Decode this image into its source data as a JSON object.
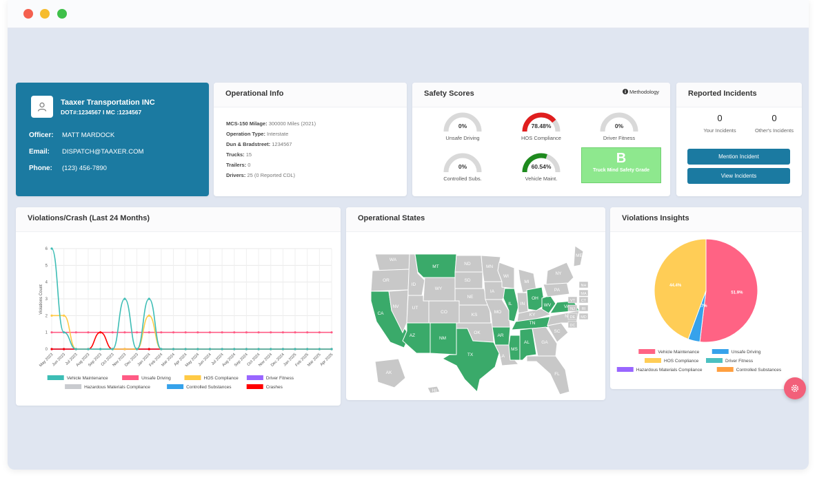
{
  "company": {
    "name": "Taaxer Transportation INC",
    "dot_mc": "DOT#:1234567 I MC :1234567",
    "officer_label": "Officer:",
    "officer": "MATT MARDOCK",
    "email_label": "Email:",
    "email": "DISPATCH@TAAXER.COM",
    "phone_label": "Phone:",
    "phone": "(123) 456-7890"
  },
  "operational_info": {
    "title": "Operational Info",
    "rows": [
      {
        "label": "MCS-150 Milage:",
        "value": "300000 Miles (2021)"
      },
      {
        "label": "Operation Type:",
        "value": "Interstate"
      },
      {
        "label": "Dun & Bradstreet:",
        "value": "1234567"
      },
      {
        "label": "Trucks:",
        "value": "15"
      },
      {
        "label": "Trailers:",
        "value": "0"
      },
      {
        "label": "Drivers:",
        "value": "25 (0 Reported CDL)"
      }
    ]
  },
  "safety_scores": {
    "title": "Safety Scores",
    "methodology": "Methodology",
    "gauges": [
      {
        "label": "Unsafe Driving",
        "value": "0%",
        "fraction": 0,
        "color": "#d9d9d9"
      },
      {
        "label": "HOS Compliance",
        "value": "78.48%",
        "fraction": 0.7848,
        "color": "#e01e1e"
      },
      {
        "label": "Driver Fitness",
        "value": "0%",
        "fraction": 0,
        "color": "#d9d9d9"
      },
      {
        "label": "Controlled Subs.",
        "value": "0%",
        "fraction": 0,
        "color": "#d9d9d9"
      },
      {
        "label": "Vehicle Maint.",
        "value": "60.54%",
        "fraction": 0.6054,
        "color": "#1e8a1e"
      }
    ],
    "grade_letter": "B",
    "grade_label": "Truck Mind Safety Grade"
  },
  "incidents": {
    "title": "Reported Incidents",
    "your_count": "0",
    "your_label": "Your Incidents",
    "others_count": "0",
    "others_label": "Other's Incidents",
    "mention_button": "Mention Incident",
    "view_button": "View Incidents"
  },
  "violations_card": {
    "title": "Violations/Crash (Last 24 Months)"
  },
  "states_card": {
    "title": "Operational States"
  },
  "insights_card": {
    "title": "Violations Insights"
  },
  "chart_data": [
    {
      "type": "line",
      "title": "Violations/Crash (Last 24 Months)",
      "ylabel": "Violations Count",
      "ylim": [
        0,
        6
      ],
      "yticks": [
        "0",
        "1",
        "2",
        "3",
        "4",
        "5",
        "6"
      ],
      "x": [
        "May 2023",
        "Jun 2023",
        "Jul 2023",
        "Aug 2023",
        "Sep 2023",
        "Oct 2023",
        "Nov 2023",
        "Dec 2023",
        "Jan 2024",
        "Feb 2024",
        "Mar 2024",
        "Apr 2024",
        "May 2024",
        "Jun 2024",
        "Jul 2024",
        "Aug 2024",
        "Sep 2024",
        "Oct 2024",
        "Nov 2024",
        "Dec 2024",
        "Jan 2025",
        "Feb 2025",
        "Mar 2025",
        "Apr 2025"
      ],
      "series": [
        {
          "name": "Vehicle Maintenance",
          "color": "#3dbdb5",
          "values": [
            6,
            1,
            0,
            0,
            0,
            0,
            3,
            0,
            3,
            0,
            0,
            0,
            0,
            0,
            0,
            0,
            0,
            0,
            0,
            0,
            0,
            0,
            0,
            0
          ]
        },
        {
          "name": "Unsafe Driving",
          "color": "#ff5b84",
          "values": [
            1,
            1,
            1,
            1,
            1,
            1,
            1,
            1,
            1,
            1,
            1,
            1,
            1,
            1,
            1,
            1,
            1,
            1,
            1,
            1,
            1,
            1,
            1,
            1
          ]
        },
        {
          "name": "HOS Compliance",
          "color": "#ffca45",
          "values": [
            2,
            2,
            0,
            0,
            0,
            0,
            0,
            0,
            2,
            0,
            0,
            0,
            0,
            0,
            0,
            0,
            0,
            0,
            0,
            0,
            0,
            0,
            0,
            0
          ]
        },
        {
          "name": "Driver Fitness",
          "color": "#9966ff",
          "values": [
            0,
            0,
            0,
            0,
            0,
            0,
            0,
            0,
            0,
            0,
            0,
            0,
            0,
            0,
            0,
            0,
            0,
            0,
            0,
            0,
            0,
            0,
            0,
            0
          ]
        },
        {
          "name": "Hazardous Materials Compliance",
          "color": "#c9cbcf",
          "values": [
            0,
            0,
            0,
            0,
            0,
            0,
            0,
            0,
            0,
            0,
            0,
            0,
            0,
            0,
            0,
            0,
            0,
            0,
            0,
            0,
            0,
            0,
            0,
            0
          ]
        },
        {
          "name": "Controlled Substances",
          "color": "#36a2eb",
          "values": [
            0,
            0,
            0,
            0,
            0,
            0,
            0,
            0,
            0,
            0,
            0,
            0,
            0,
            0,
            0,
            0,
            0,
            0,
            0,
            0,
            0,
            0,
            0,
            0
          ]
        },
        {
          "name": "Crashes",
          "color": "#ff0000",
          "values": [
            0,
            0,
            0,
            0,
            1,
            0,
            0,
            0,
            0,
            0,
            0,
            0,
            0,
            0,
            0,
            0,
            0,
            0,
            0,
            0,
            0,
            0,
            0,
            0
          ]
        }
      ],
      "grid": true,
      "legend": "bottom"
    },
    {
      "type": "pie",
      "title": "Violations Insights",
      "slices": [
        {
          "name": "Vehicle Maintenance",
          "value": 51.9,
          "label": "51.9%",
          "color": "#ff6384"
        },
        {
          "name": "Unsafe Driving",
          "value": 3.7,
          "label": "3.7%",
          "color": "#36a2eb"
        },
        {
          "name": "HOS Compliance",
          "value": 44.4,
          "label": "44.4%",
          "color": "#ffcd56"
        },
        {
          "name": "Driver Fitness",
          "value": 0,
          "label": "",
          "color": "#4bc0c0"
        },
        {
          "name": "Hazardous Materials Compliance",
          "value": 0,
          "label": "",
          "color": "#9966ff"
        },
        {
          "name": "Controlled Substances",
          "value": 0,
          "label": "",
          "color": "#ff9f40"
        }
      ],
      "legend": "bottom"
    }
  ],
  "map": {
    "active_color": "#3aaa6a",
    "inactive_color": "#c8c8c8",
    "states": [
      {
        "abbr": "WA",
        "active": false
      },
      {
        "abbr": "OR",
        "active": false
      },
      {
        "abbr": "CA",
        "active": true
      },
      {
        "abbr": "NV",
        "active": false
      },
      {
        "abbr": "ID",
        "active": false
      },
      {
        "abbr": "MT",
        "active": true
      },
      {
        "abbr": "WY",
        "active": false
      },
      {
        "abbr": "UT",
        "active": false
      },
      {
        "abbr": "AZ",
        "active": true
      },
      {
        "abbr": "CO",
        "active": false
      },
      {
        "abbr": "NM",
        "active": true
      },
      {
        "abbr": "ND",
        "active": false
      },
      {
        "abbr": "SD",
        "active": false
      },
      {
        "abbr": "NE",
        "active": false
      },
      {
        "abbr": "KS",
        "active": false
      },
      {
        "abbr": "OK",
        "active": false
      },
      {
        "abbr": "TX",
        "active": true
      },
      {
        "abbr": "MN",
        "active": false
      },
      {
        "abbr": "IA",
        "active": false
      },
      {
        "abbr": "MO",
        "active": false
      },
      {
        "abbr": "AR",
        "active": true
      },
      {
        "abbr": "LA",
        "active": false
      },
      {
        "abbr": "WI",
        "active": false
      },
      {
        "abbr": "IL",
        "active": true
      },
      {
        "abbr": "MS",
        "active": true
      },
      {
        "abbr": "MI",
        "active": false
      },
      {
        "abbr": "IN",
        "active": false
      },
      {
        "abbr": "KY",
        "active": false
      },
      {
        "abbr": "TN",
        "active": true
      },
      {
        "abbr": "AL",
        "active": true
      },
      {
        "abbr": "OH",
        "active": true
      },
      {
        "abbr": "WV",
        "active": true
      },
      {
        "abbr": "GA",
        "active": false
      },
      {
        "abbr": "FL",
        "active": false
      },
      {
        "abbr": "SC",
        "active": false
      },
      {
        "abbr": "NC",
        "active": false
      },
      {
        "abbr": "VA",
        "active": true
      },
      {
        "abbr": "PA",
        "active": false
      },
      {
        "abbr": "NY",
        "active": false
      },
      {
        "abbr": "ME",
        "active": false
      },
      {
        "abbr": "AK",
        "active": false
      },
      {
        "abbr": "HI",
        "active": false
      },
      {
        "abbr": "NH",
        "active": false
      },
      {
        "abbr": "MA",
        "active": false
      },
      {
        "abbr": "VT",
        "active": false
      },
      {
        "abbr": "CT",
        "active": false
      },
      {
        "abbr": "NJ",
        "active": false
      },
      {
        "abbr": "RI",
        "active": false
      },
      {
        "abbr": "DE",
        "active": false
      },
      {
        "abbr": "MD",
        "active": false
      },
      {
        "abbr": "DC",
        "active": false
      }
    ]
  }
}
